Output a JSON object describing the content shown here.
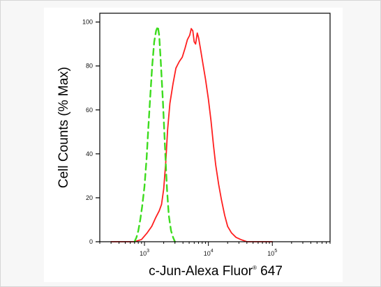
{
  "chart_data": {
    "type": "line",
    "xlabel_main": "c-Jun-Alexa Fluor",
    "xlabel_sup": "®",
    "xlabel_tail": " 647",
    "ylabel": "Cell Counts (% Max)",
    "x_scale": "log",
    "xlim": [
      200,
      800000
    ],
    "ylim": [
      0,
      104
    ],
    "y_ticks": [
      0,
      20,
      40,
      60,
      80,
      100
    ],
    "x_tick_labels": [
      {
        "value": 1000,
        "base": "10",
        "exp": "3"
      },
      {
        "value": 10000,
        "base": "10",
        "exp": "4"
      },
      {
        "value": 100000,
        "base": "10",
        "exp": "5"
      }
    ],
    "grid": false,
    "series": [
      {
        "color": "#ff1f1f",
        "style": "solid",
        "points": [
          [
            300,
            0
          ],
          [
            700,
            0
          ],
          [
            900,
            1
          ],
          [
            1100,
            4
          ],
          [
            1300,
            7
          ],
          [
            1500,
            11
          ],
          [
            1700,
            14
          ],
          [
            1850,
            17
          ],
          [
            2000,
            24
          ],
          [
            2150,
            36
          ],
          [
            2300,
            51
          ],
          [
            2500,
            63
          ],
          [
            2800,
            72
          ],
          [
            3100,
            79
          ],
          [
            3500,
            82
          ],
          [
            3900,
            84
          ],
          [
            4300,
            88
          ],
          [
            4700,
            92
          ],
          [
            5100,
            94
          ],
          [
            5400,
            97
          ],
          [
            5700,
            96
          ],
          [
            6000,
            91
          ],
          [
            6300,
            90
          ],
          [
            6700,
            95
          ],
          [
            7000,
            93
          ],
          [
            7500,
            88
          ],
          [
            8200,
            81
          ],
          [
            9000,
            74
          ],
          [
            10000,
            65
          ],
          [
            11000,
            55
          ],
          [
            12000,
            44
          ],
          [
            13000,
            35
          ],
          [
            14500,
            26
          ],
          [
            16000,
            19
          ],
          [
            18000,
            12
          ],
          [
            20000,
            7
          ],
          [
            23000,
            4
          ],
          [
            27000,
            2
          ],
          [
            32000,
            1
          ],
          [
            40000,
            0
          ],
          [
            100000,
            0
          ]
        ]
      },
      {
        "color": "#3ddc1e",
        "style": "dashed",
        "points": [
          [
            700,
            0
          ],
          [
            750,
            2
          ],
          [
            800,
            5
          ],
          [
            860,
            10
          ],
          [
            920,
            16
          ],
          [
            1000,
            25
          ],
          [
            1080,
            38
          ],
          [
            1150,
            52
          ],
          [
            1230,
            66
          ],
          [
            1320,
            80
          ],
          [
            1420,
            91
          ],
          [
            1520,
            96
          ],
          [
            1620,
            98
          ],
          [
            1700,
            94
          ],
          [
            1800,
            82
          ],
          [
            1950,
            63
          ],
          [
            2100,
            42
          ],
          [
            2250,
            24
          ],
          [
            2400,
            12
          ],
          [
            2600,
            5
          ],
          [
            2800,
            2
          ],
          [
            3000,
            0
          ]
        ]
      }
    ]
  }
}
